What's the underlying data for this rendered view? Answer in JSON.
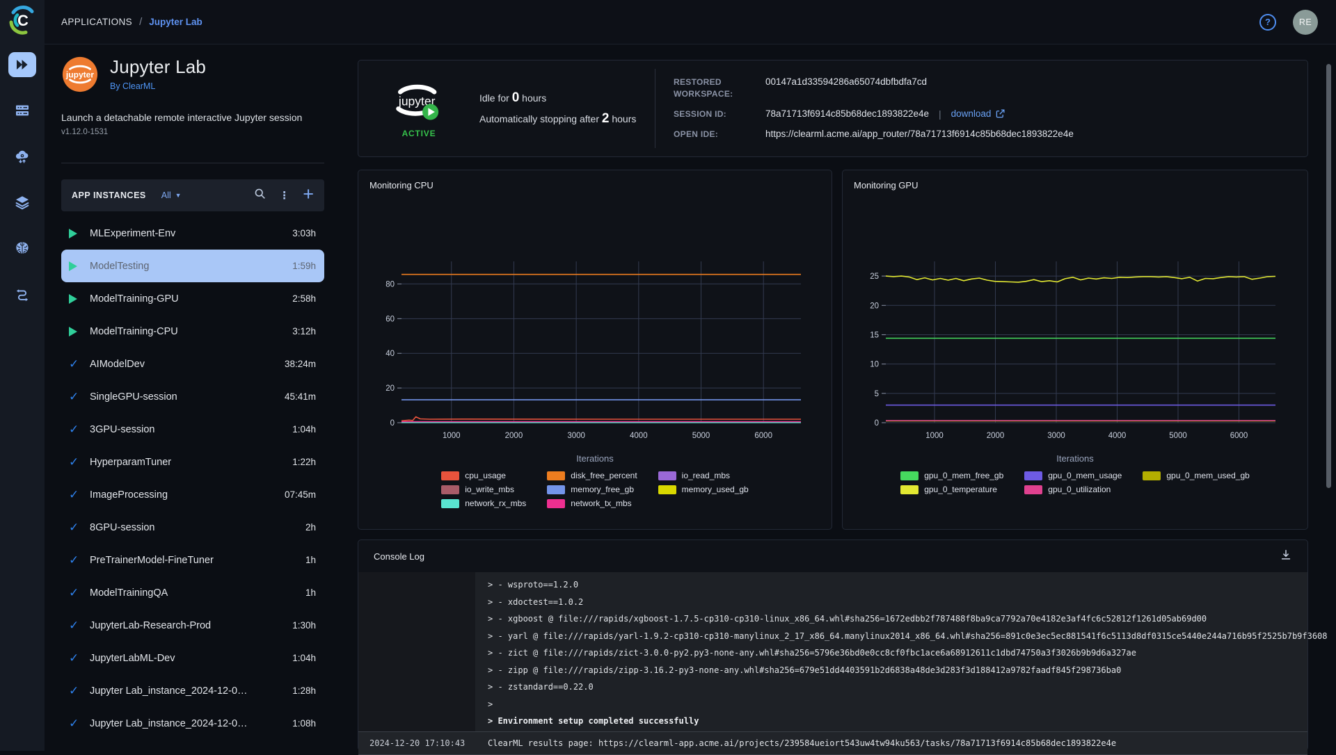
{
  "colors": {
    "accent_blue": "#5f93f2",
    "selected_row_bg": "#a9c7f7",
    "active_green": "#36c24b",
    "running_play_green": "#30cf9a",
    "completed_check_blue": "#2e82ee",
    "jupyter_orange": "#ee7b30"
  },
  "topbar": {
    "breadcrumb_root": "APPLICATIONS",
    "breadcrumb_sep": "/",
    "breadcrumb_current": "Jupyter Lab",
    "help_label": "?",
    "avatar_initials": "RE"
  },
  "rail": {
    "items": [
      {
        "id": "applications",
        "selected": true
      },
      {
        "id": "resources",
        "selected": false
      },
      {
        "id": "cloud",
        "selected": false
      },
      {
        "id": "datasets",
        "selected": false
      },
      {
        "id": "models",
        "selected": false
      },
      {
        "id": "pipelines",
        "selected": false
      }
    ]
  },
  "app_panel": {
    "title": "Jupyter Lab",
    "by": "By ClearML",
    "description": "Launch a detachable remote interactive Jupyter session",
    "version": "v1.12.0-1531",
    "instances_label": "APP INSTANCES",
    "filter_label": "All",
    "instances": [
      {
        "name": "MLExperiment-Env",
        "duration": "3:03h",
        "state": "running",
        "selected": false
      },
      {
        "name": "ModelTesting",
        "duration": "1:59h",
        "state": "running",
        "selected": true
      },
      {
        "name": "ModelTraining-GPU",
        "duration": "2:58h",
        "state": "running",
        "selected": false
      },
      {
        "name": "ModelTraining-CPU",
        "duration": "3:12h",
        "state": "running",
        "selected": false
      },
      {
        "name": "AIModelDev",
        "duration": "38:24m",
        "state": "completed",
        "selected": false
      },
      {
        "name": "SingleGPU-session",
        "duration": "45:41m",
        "state": "completed",
        "selected": false
      },
      {
        "name": "3GPU-session",
        "duration": "1:04h",
        "state": "completed",
        "selected": false
      },
      {
        "name": "HyperparamTuner",
        "duration": "1:22h",
        "state": "completed",
        "selected": false
      },
      {
        "name": "ImageProcessing",
        "duration": "07:45m",
        "state": "completed",
        "selected": false
      },
      {
        "name": "8GPU-session",
        "duration": "2h",
        "state": "completed",
        "selected": false
      },
      {
        "name": "PreTrainerModel-FineTuner",
        "duration": "1h",
        "state": "completed",
        "selected": false
      },
      {
        "name": "ModelTrainingQA",
        "duration": "1h",
        "state": "completed",
        "selected": false
      },
      {
        "name": "JupyterLab-Research-Prod",
        "duration": "1:30h",
        "state": "completed",
        "selected": false
      },
      {
        "name": "JupyterLabML-Dev",
        "duration": "1:04h",
        "state": "completed",
        "selected": false
      },
      {
        "name": "Jupyter Lab_instance_2024-12-0…",
        "duration": "1:28h",
        "state": "completed",
        "selected": false
      },
      {
        "name": "Jupyter Lab_instance_2024-12-0…",
        "duration": "1:08h",
        "state": "completed",
        "selected": false
      }
    ]
  },
  "status_card": {
    "active_label": "ACTIVE",
    "idle_prefix": "Idle for ",
    "idle_value": "0",
    "idle_suffix": " hours",
    "stopping_prefix": "Automatically stopping after ",
    "stopping_value": "2",
    "stopping_suffix": " hours",
    "details": [
      {
        "label": "RESTORED WORKSPACE:",
        "value": "00147a1d33594286a65074dbfbdfa7cd"
      },
      {
        "label": "SESSION ID:",
        "value": "78a71713f6914c85b68dec1893822e4e",
        "action": "download"
      },
      {
        "label": "OPEN IDE:",
        "value": "https://clearml.acme.ai/app_router/78a71713f6914c85b68dec1893822e4e"
      }
    ]
  },
  "chart_data": [
    {
      "type": "line",
      "title": "Monitoring CPU",
      "xlabel": "Iterations",
      "xlim": [
        200,
        6600
      ],
      "ylim": [
        0,
        93
      ],
      "xticks": [
        1000,
        2000,
        3000,
        4000,
        5000,
        6000
      ],
      "yticks": [
        0,
        20,
        40,
        60,
        80
      ],
      "grid": true,
      "legend_position": "bottom",
      "series": [
        {
          "name": "cpu_usage",
          "color": "#e8533c",
          "xy": [
            [
              200,
              1.1
            ],
            [
              320,
              1.5
            ],
            [
              380,
              1.3
            ],
            [
              430,
              3.4
            ],
            [
              500,
              2.2
            ],
            [
              650,
              2.0
            ],
            [
              1200,
              2.1
            ],
            [
              3600,
              2.0
            ],
            [
              6600,
              2.0
            ]
          ]
        },
        {
          "name": "disk_free_percent",
          "color": "#ed7d1f",
          "flat": 85.5
        },
        {
          "name": "io_read_mbs",
          "color": "#9a68d6",
          "flat": 0.15
        },
        {
          "name": "io_write_mbs",
          "color": "#a85c68",
          "flat": 0.3
        },
        {
          "name": "memory_free_gb",
          "color": "#7394ea",
          "flat": 13.2
        },
        {
          "name": "memory_used_gb",
          "color": "#d9d800",
          "flat": 0.45
        },
        {
          "name": "network_rx_mbs",
          "color": "#59e4d0",
          "flat": 0.1
        },
        {
          "name": "network_tx_mbs",
          "color": "#ee2f90",
          "flat": 0.6
        }
      ]
    },
    {
      "type": "line",
      "title": "Monitoring GPU",
      "xlabel": "Iterations",
      "xlim": [
        200,
        6600
      ],
      "ylim": [
        0,
        27.5
      ],
      "xticks": [
        1000,
        2000,
        3000,
        4000,
        5000,
        6000
      ],
      "yticks": [
        0,
        5,
        10,
        15,
        20,
        25
      ],
      "grid": true,
      "legend_position": "bottom",
      "series": [
        {
          "name": "gpu_0_mem_free_gb",
          "color": "#46d95e",
          "flat": 14.4
        },
        {
          "name": "gpu_0_mem_usage",
          "color": "#6e5be4",
          "flat": 3.0
        },
        {
          "name": "gpu_0_mem_used_gb",
          "color": "#b3ae00",
          "flat": 0.3
        },
        {
          "name": "gpu_0_temperature",
          "color": "#e2e832",
          "y": [
            25.0,
            24.9,
            25.0,
            24.85,
            24.4,
            24.7,
            24.35,
            24.6,
            24.3,
            24.6,
            24.2,
            24.5,
            24.65,
            24.3,
            24.1,
            24.05,
            24.0,
            23.95,
            24.1,
            24.4,
            24.05,
            24.2,
            24.0,
            24.55,
            24.8,
            24.35,
            24.65,
            24.5,
            24.7,
            24.6,
            24.8,
            24.75,
            24.85,
            24.9,
            24.9,
            24.85,
            24.9,
            24.75,
            24.55,
            24.8,
            24.15,
            24.6,
            24.55,
            24.75,
            24.9,
            24.85,
            24.9,
            24.45,
            24.65,
            24.9,
            24.95
          ]
        },
        {
          "name": "gpu_0_utilization",
          "color": "#e0418f",
          "flat": 0.35
        }
      ]
    }
  ],
  "console": {
    "title": "Console Log",
    "lines": [
      {
        "text": "> - wsproto==1.2.0",
        "bold": false
      },
      {
        "text": "> - xdoctest==1.0.2",
        "bold": false
      },
      {
        "text": "> - xgboost @ file:///rapids/xgboost-1.7.5-cp310-cp310-linux_x86_64.whl#sha256=1672edbb2f787488f8ba9ca7792a70e4182e3af4fc6c52812f1261d05ab69d00",
        "bold": false
      },
      {
        "text": "> - yarl @ file:///rapids/yarl-1.9.2-cp310-cp310-manylinux_2_17_x86_64.manylinux2014_x86_64.whl#sha256=891c0e3ec5ec881541f6c5113d8df0315ce5440e244a716b95f2525b7b9f3608",
        "bold": false
      },
      {
        "text": "> - zict @ file:///rapids/zict-3.0.0-py2.py3-none-any.whl#sha256=5796e36bd0e0cc8cf0fbc1ace6a68912611c1dbd74750a3f3026b9b9d6a327ae",
        "bold": false
      },
      {
        "text": "> - zipp @ file:///rapids/zipp-3.16.2-py3-none-any.whl#sha256=679e51dd4403591b2d6838a48de3d283f3d188412a9782faadf845f298736ba0",
        "bold": false
      },
      {
        "text": "> - zstandard==0.22.0",
        "bold": false
      },
      {
        "text": ">",
        "bold": false
      },
      {
        "text": "> Environment setup completed successfully",
        "bold": true
      }
    ],
    "result_row": {
      "timestamp": "2024-12-20 17:10:43",
      "text": "ClearML results page: https://clearml-app.acme.ai/projects/239584ueiort543uw4tw94ku563/tasks/78a71713f6914c85b68dec1893822e4e"
    }
  }
}
